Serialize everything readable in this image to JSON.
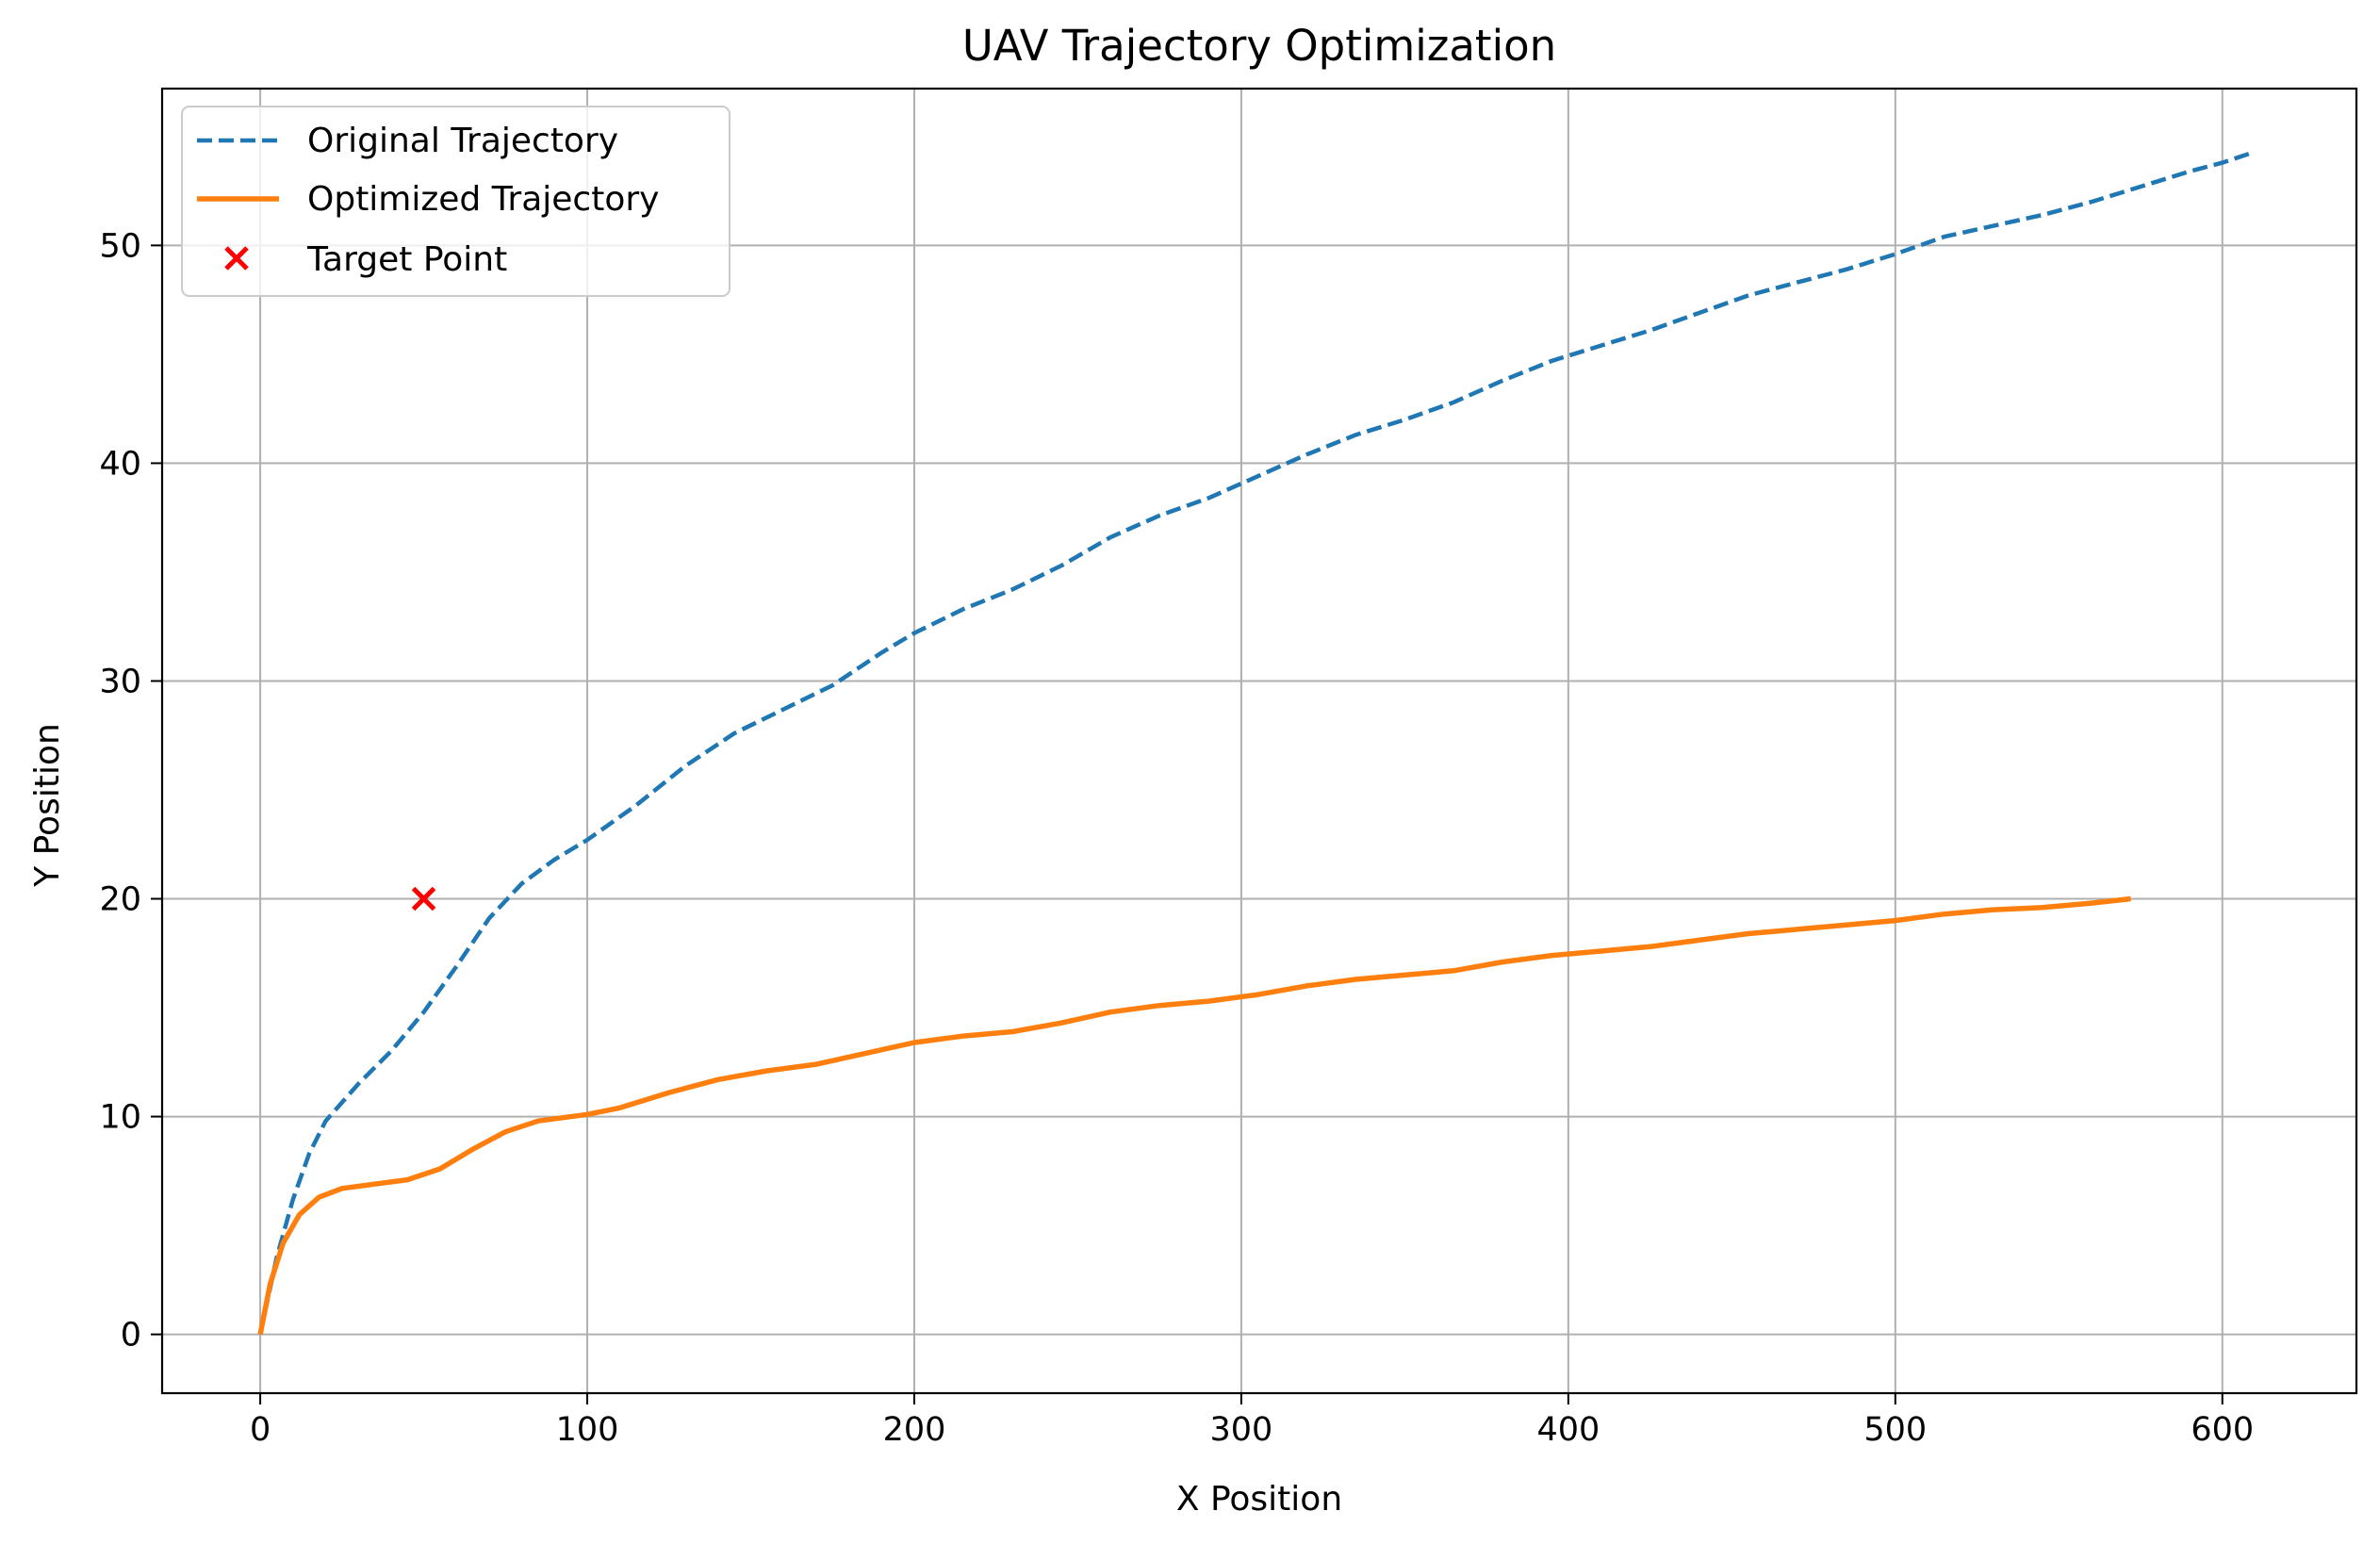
{
  "chart_data": {
    "type": "line",
    "title": "UAV Trajectory Optimization",
    "xlabel": "X Position",
    "ylabel": "Y Position",
    "xlim": [
      -30,
      641
    ],
    "ylim": [
      -2.7,
      57.2
    ],
    "xticks": [
      0,
      100,
      200,
      300,
      400,
      500,
      600
    ],
    "yticks": [
      0,
      10,
      20,
      30,
      40,
      50
    ],
    "grid": true,
    "legend_position": "upper-left",
    "series": [
      {
        "name": "Original Trajectory",
        "style": "dashed",
        "color": "#1f77b4",
        "points": [
          [
            0,
            0
          ],
          [
            5,
            3.5
          ],
          [
            10,
            6.2
          ],
          [
            15,
            8.3
          ],
          [
            20,
            9.8
          ],
          [
            30,
            11.5
          ],
          [
            40,
            13
          ],
          [
            50,
            14.8
          ],
          [
            60,
            16.9
          ],
          [
            70,
            19.1
          ],
          [
            80,
            20.7
          ],
          [
            90,
            21.8
          ],
          [
            100,
            22.7
          ],
          [
            115,
            24.3
          ],
          [
            130,
            26.1
          ],
          [
            145,
            27.6
          ],
          [
            160,
            28.7
          ],
          [
            175,
            29.8
          ],
          [
            190,
            31.3
          ],
          [
            200,
            32.2
          ],
          [
            215,
            33.3
          ],
          [
            230,
            34.2
          ],
          [
            245,
            35.3
          ],
          [
            260,
            36.6
          ],
          [
            275,
            37.6
          ],
          [
            290,
            38.4
          ],
          [
            305,
            39.4
          ],
          [
            320,
            40.4
          ],
          [
            335,
            41.3
          ],
          [
            350,
            42.0
          ],
          [
            365,
            42.8
          ],
          [
            380,
            43.8
          ],
          [
            395,
            44.7
          ],
          [
            410,
            45.4
          ],
          [
            425,
            46.1
          ],
          [
            440,
            46.9
          ],
          [
            455,
            47.7
          ],
          [
            470,
            48.3
          ],
          [
            485,
            48.9
          ],
          [
            500,
            49.6
          ],
          [
            515,
            50.4
          ],
          [
            530,
            50.9
          ],
          [
            545,
            51.4
          ],
          [
            560,
            52.0
          ],
          [
            575,
            52.7
          ],
          [
            590,
            53.4
          ],
          [
            600,
            53.8
          ],
          [
            610,
            54.3
          ]
        ]
      },
      {
        "name": "Optimized Trajectory",
        "style": "solid",
        "color": "#ff7f0e",
        "points": [
          [
            0,
            0
          ],
          [
            3,
            2.3
          ],
          [
            7,
            4.2
          ],
          [
            12,
            5.5
          ],
          [
            18,
            6.3
          ],
          [
            25,
            6.7
          ],
          [
            35,
            6.9
          ],
          [
            45,
            7.1
          ],
          [
            55,
            7.6
          ],
          [
            65,
            8.5
          ],
          [
            75,
            9.3
          ],
          [
            85,
            9.8
          ],
          [
            100,
            10.1
          ],
          [
            110,
            10.4
          ],
          [
            125,
            11.1
          ],
          [
            140,
            11.7
          ],
          [
            155,
            12.1
          ],
          [
            170,
            12.4
          ],
          [
            185,
            12.9
          ],
          [
            200,
            13.4
          ],
          [
            215,
            13.7
          ],
          [
            230,
            13.9
          ],
          [
            245,
            14.3
          ],
          [
            260,
            14.8
          ],
          [
            275,
            15.1
          ],
          [
            290,
            15.3
          ],
          [
            305,
            15.6
          ],
          [
            320,
            16.0
          ],
          [
            335,
            16.3
          ],
          [
            350,
            16.5
          ],
          [
            365,
            16.7
          ],
          [
            380,
            17.1
          ],
          [
            395,
            17.4
          ],
          [
            410,
            17.6
          ],
          [
            425,
            17.8
          ],
          [
            440,
            18.1
          ],
          [
            455,
            18.4
          ],
          [
            470,
            18.6
          ],
          [
            485,
            18.8
          ],
          [
            500,
            19.0
          ],
          [
            515,
            19.3
          ],
          [
            530,
            19.5
          ],
          [
            545,
            19.6
          ],
          [
            560,
            19.8
          ],
          [
            572,
            20.0
          ]
        ]
      }
    ],
    "scatter": [
      {
        "name": "Target Point",
        "marker": "x",
        "color": "#ff0000",
        "points": [
          [
            50,
            20
          ]
        ]
      }
    ]
  }
}
